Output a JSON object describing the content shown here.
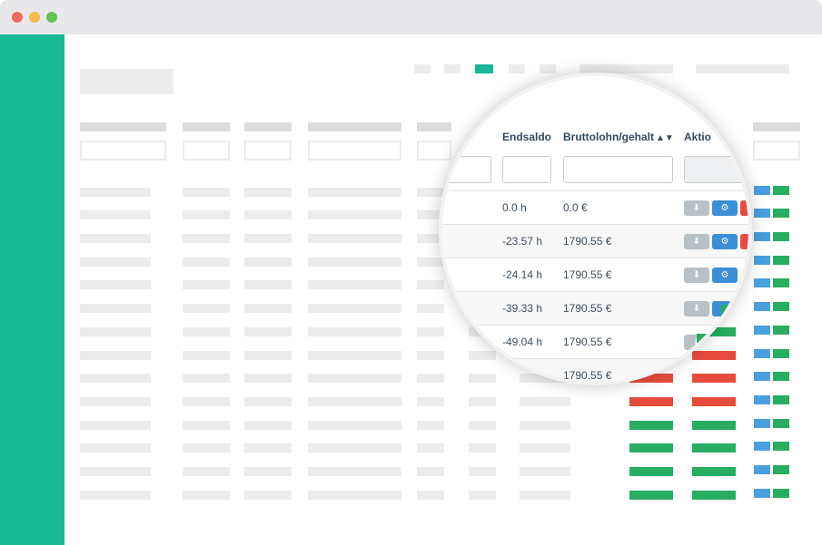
{
  "window": {
    "controls": [
      "close",
      "minimize",
      "maximize"
    ]
  },
  "colors": {
    "accent": "#16b994",
    "danger": "#e64c3d",
    "success": "#27ae60",
    "primary": "#3b8fd6"
  },
  "magnifier": {
    "headers": {
      "balance": "Endsaldo",
      "gross": "Bruttolohn/gehalt",
      "actions": "Aktio"
    },
    "sort_icon": "sort-icon",
    "rows": [
      {
        "balance": "0.0 h",
        "gross": "0.0 €"
      },
      {
        "balance": "-23.57 h",
        "gross": "1790.55 €"
      },
      {
        "balance": "-24.14 h",
        "gross": "1790.55 €"
      },
      {
        "balance": "-39.33 h",
        "gross": "1790.55 €"
      },
      {
        "balance": "-49.04 h",
        "gross": "1790.55 €"
      },
      {
        "balance": "",
        "gross": "1790.55 €"
      }
    ],
    "actions": {
      "download_icon": "download-icon",
      "settings_icon": "gear-icon"
    }
  }
}
